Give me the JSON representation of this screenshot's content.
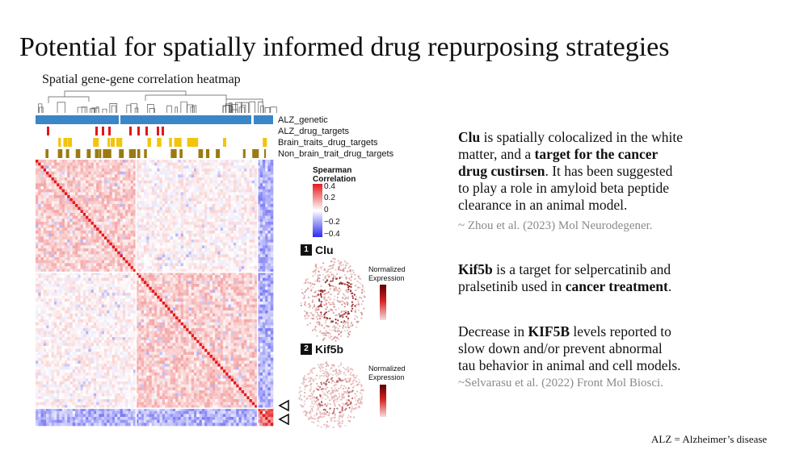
{
  "slide": {
    "title": "Potential for spatially informed drug repurposing strategies",
    "subtitle": "Spatial gene-gene correlation heatmap",
    "footnote": "ALZ = Alzheimer’s disease"
  },
  "heatmap": {
    "annotation_rows": [
      "ALZ_genetic",
      "ALZ_drug_targets",
      "Brain_traits_drug_targets",
      "Non_brain_trait_drug_targets"
    ],
    "legend": {
      "title_line1": "Spearman",
      "title_line2": "Correlation",
      "ticks": [
        "0.4",
        "0.2",
        "0",
        "−0.2",
        "−0.4"
      ]
    },
    "colors": {
      "high": "#e41a1c",
      "mid": "#ffffff",
      "low": "#2c2cf0",
      "alz_genetic": "#3b86c6",
      "alz_drug": "#e0151b",
      "brain_drug": "#f1c40f",
      "nonbrain_drug": "#9c7a12"
    }
  },
  "panels": [
    {
      "number": "1",
      "gene": "Clu",
      "legend_title_line1": "Normalized",
      "legend_title_line2": "Expression"
    },
    {
      "number": "2",
      "gene": "Kif5b",
      "legend_title_line1": "Normalized",
      "legend_title_line2": "Expression"
    }
  ],
  "text": {
    "p1_a": "Clu",
    "p1_b": " is spatially colocalized in the white",
    "p1_c": "matter, and a ",
    "p1_d": "target for the cancer",
    "p1_e": "drug custirsen",
    "p1_f": ". It has been suggested",
    "p1_g": "to play a role in amyloid beta peptide",
    "p1_h": "clearance in an animal model.",
    "cite1": "~ Zhou et al. (2023) Mol Neurodegener.",
    "p2_a": "Kif5b",
    "p2_b": " is a target for selpercatinib and",
    "p2_c": "pralsetinib used in ",
    "p2_d": "cancer treatment",
    "p2_e": ".",
    "p3_a": "Decrease in ",
    "p3_b": "KIF5B",
    "p3_c": " levels reported to",
    "p3_d": "slow down and/or prevent abnormal",
    "p3_e": "tau behavior in animal and cell models.",
    "cite2": "~Selvarasu et al. (2022) Front Mol Biosci."
  }
}
